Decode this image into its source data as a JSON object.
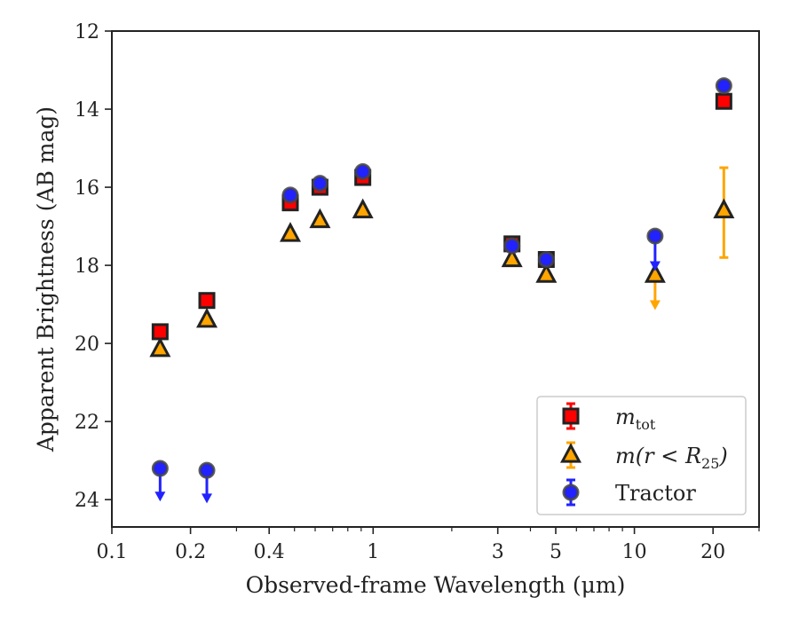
{
  "chart_data": {
    "type": "scatter",
    "xscale": "log",
    "xlim": [
      0.1,
      30
    ],
    "ylim": [
      12,
      24.7
    ],
    "y_inverted": true,
    "grid": false,
    "legend_position": "lower-right",
    "xlabel": "Observed-frame Wavelength (μm)",
    "ylabel": "Apparent Brightness (AB mag)",
    "x_tick_labels": [
      {
        "value": 0.1,
        "label": "0.1"
      },
      {
        "value": 0.2,
        "label": "0.2"
      },
      {
        "value": 0.4,
        "label": "0.4"
      },
      {
        "value": 1,
        "label": "1"
      },
      {
        "value": 3,
        "label": "3"
      },
      {
        "value": 5,
        "label": "5"
      },
      {
        "value": 10,
        "label": "10"
      },
      {
        "value": 20,
        "label": "20"
      }
    ],
    "x_minor_ticks": [
      0.3,
      0.5,
      0.6,
      0.7,
      0.8,
      0.9,
      2,
      4,
      6,
      7,
      8,
      9,
      30
    ],
    "y_ticks": [
      12,
      14,
      16,
      18,
      20,
      22,
      24
    ],
    "series": [
      {
        "name": "m_tot",
        "legend_label": {
          "main": "m",
          "sub": "tot"
        },
        "marker": "square",
        "color": "#ff0000",
        "edge": "#222222",
        "points": [
          {
            "x": 0.153,
            "y": 19.7
          },
          {
            "x": 0.231,
            "y": 18.9
          },
          {
            "x": 0.482,
            "y": 16.4
          },
          {
            "x": 0.626,
            "y": 16.0
          },
          {
            "x": 0.913,
            "y": 15.75
          },
          {
            "x": 3.4,
            "y": 17.45
          },
          {
            "x": 4.6,
            "y": 17.85
          },
          {
            "x": 22.0,
            "y": 13.8
          }
        ]
      },
      {
        "name": "m(r < R25)",
        "legend_label": {
          "main": "m(r < R",
          "sub": "25",
          "tail": ")"
        },
        "marker": "triangle",
        "color": "#ffa500",
        "edge": "#222222",
        "points": [
          {
            "x": 0.153,
            "y": 20.15
          },
          {
            "x": 0.231,
            "y": 19.4
          },
          {
            "x": 0.482,
            "y": 17.2
          },
          {
            "x": 0.626,
            "y": 16.85
          },
          {
            "x": 0.913,
            "y": 16.6
          },
          {
            "x": 3.4,
            "y": 17.85
          },
          {
            "x": 4.6,
            "y": 18.25
          },
          {
            "x": 12.0,
            "y": 18.25,
            "upper_limit_to": 19.1
          },
          {
            "x": 22.0,
            "y": 16.6,
            "err_low": 15.5,
            "err_high": 17.8
          }
        ]
      },
      {
        "name": "Tractor",
        "legend_label": {
          "main": "Tractor"
        },
        "marker": "circle",
        "color": "#2222ff",
        "edge": "#444444",
        "points": [
          {
            "x": 0.153,
            "y": 23.2,
            "upper_limit_to": 24.0
          },
          {
            "x": 0.231,
            "y": 23.25,
            "upper_limit_to": 24.05
          },
          {
            "x": 0.482,
            "y": 16.2
          },
          {
            "x": 0.626,
            "y": 15.9
          },
          {
            "x": 0.913,
            "y": 15.6
          },
          {
            "x": 3.4,
            "y": 17.5
          },
          {
            "x": 4.6,
            "y": 17.85
          },
          {
            "x": 12.0,
            "y": 17.25,
            "upper_limit_to": 18.1
          },
          {
            "x": 22.0,
            "y": 13.4
          }
        ]
      }
    ]
  }
}
